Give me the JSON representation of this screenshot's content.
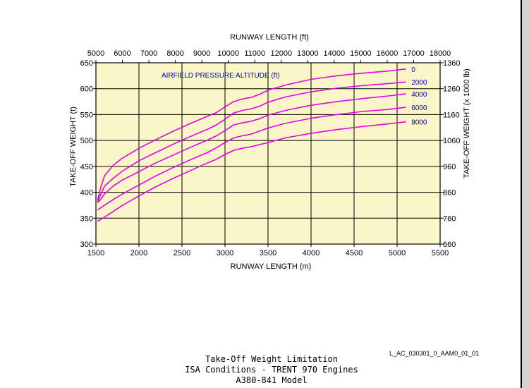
{
  "chart_data": {
    "type": "line",
    "top_axis": {
      "label": "RUNWAY LENGTH (ft)",
      "range": [
        5000,
        18000
      ],
      "ticks": [
        5000,
        6000,
        7000,
        8000,
        9000,
        10000,
        11000,
        12000,
        13000,
        14000,
        15000,
        16000,
        17000,
        18000
      ]
    },
    "bottom_axis": {
      "label": "RUNWAY LENGTH (m)",
      "range": [
        1500,
        5500
      ],
      "ticks": [
        1500,
        2000,
        2500,
        3000,
        3500,
        4000,
        4500,
        5000,
        5500
      ]
    },
    "left_axis": {
      "label": "TAKE-OFF WEIGHT (t)",
      "range": [
        300,
        650
      ],
      "ticks": [
        300,
        350,
        400,
        450,
        500,
        550,
        600,
        650
      ]
    },
    "right_axis": {
      "label": "TAKE-OFF WEIGHT (x 1000 lb)",
      "range": [
        660,
        1360
      ],
      "ticks": [
        660,
        760,
        860,
        960,
        1060,
        1160,
        1260,
        1360
      ]
    },
    "legend_title": "AIRFIELD PRESSURE ALTITUDE (ft)",
    "grid": true,
    "colors": {
      "plot_bg": "#fbf6c8",
      "series": "#e600e6",
      "labels": "#0000cc"
    },
    "series": [
      {
        "name": "0",
        "points": [
          [
            1520,
            385
          ],
          [
            1560,
            412
          ],
          [
            1600,
            432
          ],
          [
            1700,
            452
          ],
          [
            1800,
            465
          ],
          [
            2000,
            485
          ],
          [
            2200,
            502
          ],
          [
            2400,
            518
          ],
          [
            2600,
            533
          ],
          [
            2800,
            547
          ],
          [
            2900,
            554
          ],
          [
            3000,
            565
          ],
          [
            3100,
            575
          ],
          [
            3200,
            580
          ],
          [
            3300,
            583
          ],
          [
            3400,
            589
          ],
          [
            3500,
            597
          ],
          [
            3700,
            607
          ],
          [
            4000,
            618
          ],
          [
            4300,
            625
          ],
          [
            4600,
            630
          ],
          [
            4900,
            634
          ],
          [
            5100,
            638
          ]
        ]
      },
      {
        "name": "2000",
        "points": [
          [
            1520,
            382
          ],
          [
            1560,
            397
          ],
          [
            1600,
            412
          ],
          [
            1700,
            427
          ],
          [
            1800,
            440
          ],
          [
            2000,
            461
          ],
          [
            2200,
            477
          ],
          [
            2400,
            493
          ],
          [
            2600,
            508
          ],
          [
            2800,
            522
          ],
          [
            2900,
            530
          ],
          [
            3000,
            541
          ],
          [
            3100,
            553
          ],
          [
            3200,
            558
          ],
          [
            3300,
            561
          ],
          [
            3400,
            566
          ],
          [
            3500,
            574
          ],
          [
            3700,
            584
          ],
          [
            4000,
            594
          ],
          [
            4300,
            601
          ],
          [
            4600,
            606
          ],
          [
            4900,
            610
          ],
          [
            5100,
            613
          ]
        ]
      },
      {
        "name": "4000",
        "points": [
          [
            1520,
            380
          ],
          [
            1560,
            387
          ],
          [
            1600,
            397
          ],
          [
            1700,
            412
          ],
          [
            1800,
            423
          ],
          [
            2000,
            440
          ],
          [
            2200,
            457
          ],
          [
            2400,
            472
          ],
          [
            2600,
            487
          ],
          [
            2800,
            501
          ],
          [
            2900,
            509
          ],
          [
            3000,
            519
          ],
          [
            3100,
            530
          ],
          [
            3200,
            534
          ],
          [
            3300,
            537
          ],
          [
            3400,
            542
          ],
          [
            3500,
            549
          ],
          [
            3700,
            558
          ],
          [
            4000,
            568
          ],
          [
            4300,
            575
          ],
          [
            4600,
            581
          ],
          [
            4900,
            586
          ],
          [
            5100,
            590
          ]
        ]
      },
      {
        "name": "6000",
        "points": [
          [
            1520,
            366
          ],
          [
            1600,
            375
          ],
          [
            1700,
            386
          ],
          [
            1800,
            396
          ],
          [
            2000,
            414
          ],
          [
            2200,
            432
          ],
          [
            2400,
            448
          ],
          [
            2600,
            463
          ],
          [
            2800,
            477
          ],
          [
            2900,
            486
          ],
          [
            3000,
            496
          ],
          [
            3100,
            505
          ],
          [
            3200,
            509
          ],
          [
            3300,
            512
          ],
          [
            3400,
            518
          ],
          [
            3500,
            524
          ],
          [
            3700,
            533
          ],
          [
            4000,
            543
          ],
          [
            4300,
            550
          ],
          [
            4600,
            556
          ],
          [
            4900,
            560
          ],
          [
            5100,
            564
          ]
        ]
      },
      {
        "name": "8000",
        "points": [
          [
            1520,
            344
          ],
          [
            1600,
            352
          ],
          [
            1700,
            363
          ],
          [
            1800,
            374
          ],
          [
            2000,
            393
          ],
          [
            2200,
            411
          ],
          [
            2400,
            427
          ],
          [
            2600,
            442
          ],
          [
            2800,
            457
          ],
          [
            2900,
            464
          ],
          [
            3000,
            473
          ],
          [
            3100,
            481
          ],
          [
            3200,
            485
          ],
          [
            3300,
            488
          ],
          [
            3400,
            492
          ],
          [
            3500,
            496
          ],
          [
            3700,
            505
          ],
          [
            4000,
            514
          ],
          [
            4300,
            521
          ],
          [
            4600,
            527
          ],
          [
            4900,
            532
          ],
          [
            5100,
            536
          ]
        ]
      }
    ]
  },
  "caption": {
    "line1": "Take-Off Weight Limitation",
    "line2": "ISA Conditions - TRENT 970 Engines",
    "line3": "A380-841 Model"
  },
  "reference_code": "L_AC_030301_0_AAM0_01_01"
}
